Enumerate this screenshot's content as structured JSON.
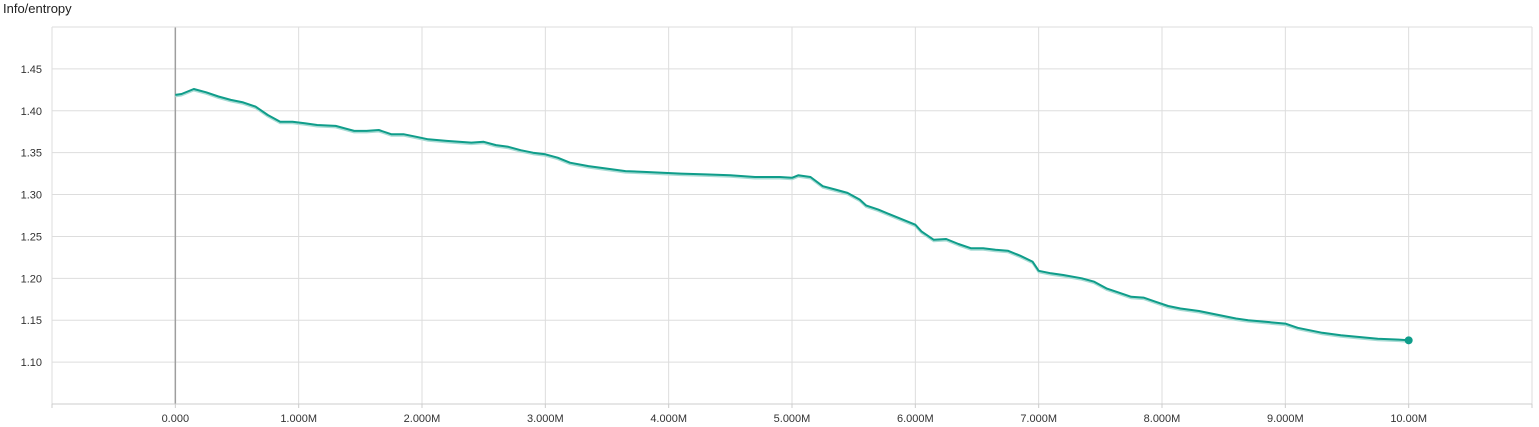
{
  "chart_data": {
    "type": "line",
    "title": "Info/entropy",
    "xlabel": "",
    "ylabel": "",
    "xlim": [
      -1000000,
      11000000
    ],
    "ylim": [
      1.05,
      1.5
    ],
    "x_ticks": [
      0,
      1000000,
      2000000,
      3000000,
      4000000,
      5000000,
      6000000,
      7000000,
      8000000,
      9000000,
      10000000
    ],
    "x_tick_labels": [
      "0.000",
      "1.000M",
      "2.000M",
      "3.000M",
      "4.000M",
      "5.000M",
      "6.000M",
      "7.000M",
      "8.000M",
      "9.000M",
      "10.00M"
    ],
    "y_ticks": [
      1.1,
      1.15,
      1.2,
      1.25,
      1.3,
      1.35,
      1.4,
      1.45
    ],
    "y_tick_labels": [
      "1.10",
      "1.15",
      "1.20",
      "1.25",
      "1.30",
      "1.35",
      "1.40",
      "1.45"
    ],
    "grid": true,
    "line_color": "#0f9d8a",
    "raw_line_color": "#a9dcd5",
    "series": [
      {
        "x": [
          0,
          50000,
          150000,
          250000,
          350000,
          450000,
          550000,
          650000,
          750000,
          850000,
          950000,
          1050000,
          1150000,
          1300000,
          1450000,
          1550000,
          1650000,
          1750000,
          1850000,
          1950000,
          2050000,
          2200000,
          2400000,
          2500000,
          2600000,
          2700000,
          2800000,
          2900000,
          3000000,
          3100000,
          3200000,
          3350000,
          3500000,
          3650000,
          3800000,
          3950000,
          4100000,
          4300000,
          4500000,
          4700000,
          4900000,
          5000000,
          5050000,
          5150000,
          5250000,
          5350000,
          5450000,
          5550000,
          5600000,
          5700000,
          5800000,
          5900000,
          6000000,
          6050000,
          6150000,
          6250000,
          6350000,
          6450000,
          6550000,
          6650000,
          6750000,
          6850000,
          6950000,
          7000000,
          7100000,
          7200000,
          7350000,
          7450000,
          7550000,
          7650000,
          7750000,
          7850000,
          7950000,
          8050000,
          8150000,
          8300000,
          8400000,
          8500000,
          8600000,
          8700000,
          8850000,
          9000000,
          9100000,
          9200000,
          9300000,
          9450000,
          9600000,
          9750000,
          9900000,
          10000000
        ],
        "values": [
          1.419,
          1.42,
          1.426,
          1.422,
          1.417,
          1.413,
          1.41,
          1.405,
          1.395,
          1.387,
          1.387,
          1.385,
          1.383,
          1.382,
          1.376,
          1.376,
          1.377,
          1.372,
          1.372,
          1.369,
          1.366,
          1.364,
          1.362,
          1.363,
          1.359,
          1.357,
          1.353,
          1.35,
          1.348,
          1.344,
          1.338,
          1.334,
          1.331,
          1.328,
          1.327,
          1.326,
          1.325,
          1.324,
          1.323,
          1.321,
          1.321,
          1.32,
          1.323,
          1.321,
          1.31,
          1.306,
          1.302,
          1.294,
          1.287,
          1.282,
          1.276,
          1.27,
          1.264,
          1.256,
          1.246,
          1.247,
          1.241,
          1.236,
          1.236,
          1.234,
          1.233,
          1.227,
          1.22,
          1.209,
          1.206,
          1.204,
          1.2,
          1.196,
          1.188,
          1.183,
          1.178,
          1.177,
          1.172,
          1.167,
          1.164,
          1.161,
          1.158,
          1.155,
          1.152,
          1.15,
          1.148,
          1.146,
          1.141,
          1.138,
          1.135,
          1.132,
          1.13,
          1.128,
          1.127,
          1.126
        ]
      }
    ]
  }
}
